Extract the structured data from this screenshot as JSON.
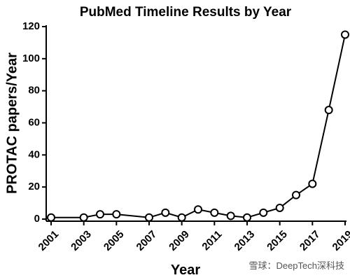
{
  "chart_data": {
    "type": "line",
    "title": "PubMed Timeline Results by Year",
    "x_label": "Year",
    "y_label": "PROTAC papers/Year",
    "x": [
      2001,
      2003,
      2004,
      2005,
      2007,
      2008,
      2009,
      2010,
      2011,
      2012,
      2013,
      2014,
      2015,
      2016,
      2017,
      2018,
      2019
    ],
    "series": [
      {
        "name": "PROTAC papers",
        "color": "#000000",
        "values": [
          1,
          1,
          3,
          3,
          1,
          4,
          1,
          6,
          4,
          2,
          1,
          4,
          7,
          15,
          22,
          68,
          115
        ]
      }
    ],
    "xlim": [
      2001,
      2019
    ],
    "xticks": [
      2001,
      2003,
      2005,
      2007,
      2009,
      2011,
      2013,
      2015,
      2017,
      2019
    ],
    "ylim": [
      0,
      120
    ],
    "yticks": [
      0,
      20,
      40,
      60,
      80,
      100,
      120
    ],
    "annotation": "雪球：DeepTech深科技"
  }
}
